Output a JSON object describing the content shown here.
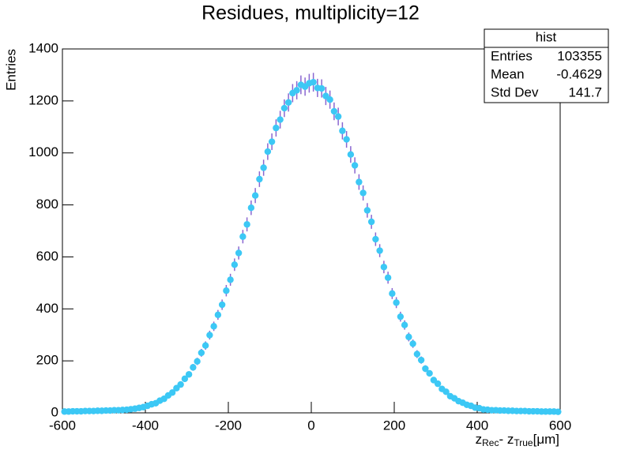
{
  "chart_data": {
    "type": "scatter",
    "title": "Residues, multiplicity=12",
    "y_label": "Entries",
    "x_label": {
      "z1": "z",
      "sub1": "Rec",
      "mid": "- z",
      "sub2": "True",
      "unit": "[μm]"
    },
    "stats": {
      "title": "hist",
      "rows": [
        [
          "Entries",
          "103355"
        ],
        [
          "Mean",
          "-0.4629"
        ],
        [
          "Std Dev",
          "141.7"
        ]
      ]
    },
    "marker_color": "#3cc8f5",
    "error_color": "#8a66d0",
    "xlim": [
      -600,
      600
    ],
    "xticks": [
      -600,
      -400,
      -200,
      0,
      200,
      400,
      600
    ],
    "ylim": [
      0,
      1400
    ],
    "yticks": [
      0,
      200,
      400,
      600,
      800,
      1000,
      1200,
      1400
    ],
    "x": [
      -595,
      -585,
      -575,
      -565,
      -555,
      -545,
      -535,
      -525,
      -515,
      -505,
      -495,
      -485,
      -475,
      -465,
      -455,
      -445,
      -435,
      -425,
      -415,
      -405,
      -395,
      -385,
      -375,
      -365,
      -355,
      -345,
      -335,
      -325,
      -315,
      -305,
      -295,
      -285,
      -275,
      -265,
      -255,
      -245,
      -235,
      -225,
      -215,
      -205,
      -195,
      -185,
      -175,
      -165,
      -155,
      -145,
      -135,
      -125,
      -115,
      -105,
      -95,
      -85,
      -75,
      -65,
      -55,
      -45,
      -35,
      -25,
      -15,
      -5,
      5,
      15,
      25,
      35,
      45,
      55,
      65,
      75,
      85,
      95,
      105,
      115,
      125,
      135,
      145,
      155,
      165,
      175,
      185,
      195,
      205,
      215,
      225,
      235,
      245,
      255,
      265,
      275,
      285,
      295,
      305,
      315,
      325,
      335,
      345,
      355,
      365,
      375,
      385,
      395,
      405,
      415,
      425,
      435,
      445,
      455,
      465,
      475,
      485,
      495,
      505,
      515,
      525,
      535,
      545,
      555,
      565,
      575,
      585,
      595
    ],
    "values": [
      5,
      5,
      6,
      6,
      6,
      7,
      7,
      7,
      8,
      8,
      9,
      9,
      10,
      10,
      11,
      12,
      14,
      16,
      19,
      22,
      27,
      33,
      37,
      47,
      54,
      67,
      78,
      95,
      109,
      131,
      148,
      175,
      198,
      231,
      259,
      299,
      333,
      377,
      416,
      470,
      512,
      570,
      615,
      678,
      725,
      789,
      836,
      899,
      943,
      1005,
      1043,
      1096,
      1128,
      1172,
      1194,
      1230,
      1241,
      1262,
      1255,
      1268,
      1272,
      1250,
      1248,
      1219,
      1205,
      1160,
      1140,
      1085,
      1052,
      994,
      952,
      888,
      846,
      779,
      735,
      668,
      624,
      561,
      520,
      459,
      424,
      370,
      338,
      292,
      266,
      226,
      203,
      170,
      152,
      126,
      112,
      92,
      81,
      64,
      56,
      45,
      39,
      31,
      27,
      20,
      18,
      13,
      12,
      10,
      10,
      9,
      9,
      8,
      8,
      7,
      7,
      7,
      6,
      6,
      6,
      5,
      5,
      5,
      5,
      4
    ],
    "errors": [
      2,
      2,
      2,
      2,
      2,
      3,
      3,
      3,
      3,
      3,
      3,
      3,
      3,
      3,
      3,
      3,
      4,
      4,
      4,
      5,
      5,
      6,
      6,
      7,
      7,
      8,
      9,
      10,
      10,
      11,
      12,
      13,
      14,
      15,
      16,
      17,
      18,
      19,
      20,
      22,
      23,
      24,
      25,
      26,
      27,
      28,
      29,
      30,
      31,
      32,
      32,
      33,
      34,
      34,
      35,
      35,
      35,
      36,
      35,
      36,
      36,
      35,
      35,
      35,
      35,
      34,
      34,
      33,
      32,
      32,
      31,
      30,
      29,
      28,
      27,
      26,
      25,
      24,
      23,
      21,
      21,
      19,
      18,
      17,
      16,
      15,
      14,
      13,
      12,
      11,
      11,
      10,
      9,
      8,
      7,
      7,
      6,
      6,
      5,
      4,
      4,
      4,
      3,
      3,
      3,
      3,
      3,
      3,
      3,
      3,
      3,
      3,
      2,
      2,
      2,
      2,
      2,
      2,
      2,
      2
    ]
  }
}
